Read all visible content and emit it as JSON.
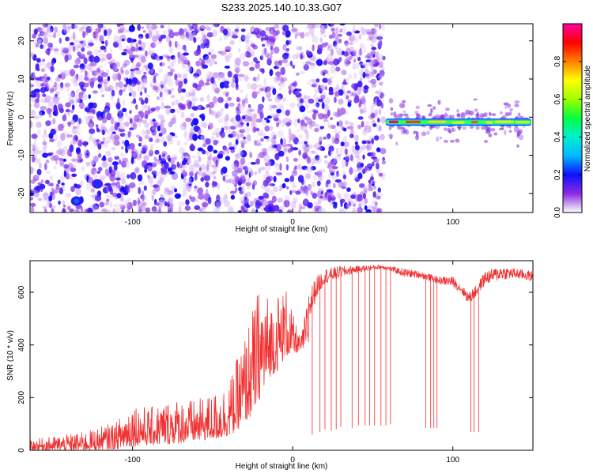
{
  "chart_data": [
    {
      "type": "heatmap",
      "title": "S233.2025.140.10.33.G07",
      "xlabel": "Height of straight line (km)",
      "ylabel": "Frequency (Hz)",
      "xlim": [
        -164,
        150
      ],
      "ylim": [
        -25,
        24.5
      ],
      "xticks": [
        -100,
        0,
        100
      ],
      "yticks": [
        -20,
        -10,
        0,
        10,
        20
      ],
      "colorbar": {
        "label": "Normalized spectral amplitude",
        "range": [
          0,
          1
        ],
        "ticks": [
          0.0,
          0.2,
          0.4,
          0.6,
          0.8
        ],
        "colormap": "rainbow (white-violet-blue-cyan-green-yellow-red-magenta)"
      },
      "regions": [
        {
          "name": "noise",
          "x_range": [
            -164,
            57
          ],
          "freq_range": [
            -25,
            24.5
          ],
          "amplitude_range": [
            0.0,
            0.2
          ]
        },
        {
          "name": "tone",
          "x_range": [
            57,
            150
          ],
          "center_frequency": -1.3,
          "bandwidth_hz": 2,
          "amplitude_range": [
            0.6,
            1.0
          ]
        }
      ],
      "hotspots": [
        {
          "x": -135,
          "y": -22,
          "amplitude": 0.25
        },
        {
          "x": -122,
          "y": -17.5,
          "amplitude": 0.22
        },
        {
          "x": -14,
          "y": -24,
          "amplitude": 0.18
        }
      ]
    },
    {
      "type": "line",
      "xlabel": "Height of straight line (km)",
      "ylabel": "SNR (10 * v/v)",
      "xlim": [
        -164,
        150
      ],
      "ylim": [
        0,
        720
      ],
      "xticks": [
        -100,
        0,
        100
      ],
      "yticks": [
        0,
        200,
        400,
        600
      ],
      "color": "#f03030",
      "envelope": {
        "x": [
          -164,
          -130,
          -110,
          -100,
          -90,
          -75,
          -60,
          -45,
          -38,
          -32,
          -26,
          -20,
          -14,
          -10,
          -4,
          0,
          5,
          10,
          15,
          20,
          30,
          40,
          55,
          60,
          70,
          80,
          90,
          100,
          105,
          110,
          115,
          120,
          130,
          140,
          150
        ],
        "low": [
          0,
          0,
          5,
          15,
          20,
          25,
          35,
          45,
          60,
          90,
          130,
          200,
          280,
          300,
          360,
          360,
          380,
          400,
          540,
          600,
          630,
          660,
          680,
          675,
          640,
          640,
          620,
          600,
          580,
          530,
          560,
          600,
          620,
          630,
          620
        ],
        "high": [
          40,
          70,
          110,
          190,
          160,
          200,
          190,
          230,
          290,
          400,
          520,
          640,
          580,
          600,
          620,
          520,
          420,
          610,
          660,
          690,
          700,
          700,
          705,
          700,
          690,
          680,
          660,
          660,
          630,
          600,
          630,
          680,
          700,
          690,
          680
        ]
      },
      "dropouts": [
        {
          "x": 12,
          "y": 60
        },
        {
          "x": 17,
          "y": 70
        },
        {
          "x": 20,
          "y": 80
        },
        {
          "x": 24,
          "y": 75
        },
        {
          "x": 27,
          "y": 80
        },
        {
          "x": 30,
          "y": 90
        },
        {
          "x": 37,
          "y": 85
        },
        {
          "x": 41,
          "y": 95
        },
        {
          "x": 45,
          "y": 95
        },
        {
          "x": 48,
          "y": 95
        },
        {
          "x": 51,
          "y": 95
        },
        {
          "x": 55,
          "y": 95
        },
        {
          "x": 58,
          "y": 95
        },
        {
          "x": 61,
          "y": 100
        },
        {
          "x": 83,
          "y": 85
        },
        {
          "x": 86,
          "y": 85
        },
        {
          "x": 88,
          "y": 85
        },
        {
          "x": 90,
          "y": 85
        },
        {
          "x": 111,
          "y": 70
        },
        {
          "x": 113,
          "y": 70
        },
        {
          "x": 116,
          "y": 70
        }
      ]
    }
  ]
}
